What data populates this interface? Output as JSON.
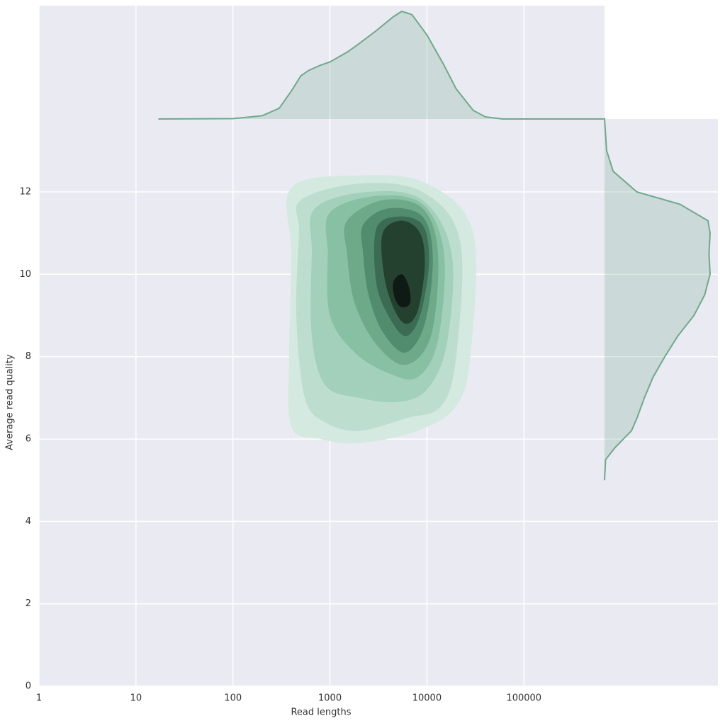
{
  "chart_data": {
    "type": "jointkde",
    "xlabel": "Read lengths",
    "ylabel": "Average read quality",
    "xscale": "log",
    "xlim": [
      1,
      10000000
    ],
    "ylim": [
      0,
      13.77
    ],
    "xticks": [
      1,
      10,
      100,
      1000,
      10000,
      100000
    ],
    "yticks": [
      0,
      2,
      4,
      6,
      8,
      10,
      12
    ],
    "grid": true,
    "background": "#eaeaf2",
    "contours": [
      {
        "color": "#d4e9df",
        "x": [
          400,
          2000,
          10000,
          30000,
          28000,
          20000,
          8000,
          2000,
          800,
          400,
          380,
          400
        ],
        "y": [
          12.1,
          12.4,
          12.2,
          11,
          8,
          6.8,
          6.2,
          5.9,
          6,
          6.3,
          8,
          10.5
        ]
      },
      {
        "color": "#bddecf",
        "x": [
          500,
          2000,
          9000,
          22000,
          20000,
          14000,
          6000,
          2000,
          900,
          550,
          450,
          480
        ],
        "y": [
          11.8,
          12.2,
          12,
          10.8,
          8,
          6.8,
          6.5,
          6.2,
          6.4,
          7,
          9,
          11
        ]
      },
      {
        "color": "#a2d0ba",
        "x": [
          700,
          2500,
          9000,
          18000,
          16000,
          10000,
          5000,
          2000,
          900,
          650,
          650
        ],
        "y": [
          11.6,
          12,
          11.8,
          10.5,
          8.3,
          7.2,
          6.9,
          7,
          7.3,
          8.5,
          10.5
        ]
      },
      {
        "color": "#88c0a3",
        "x": [
          1000,
          3000,
          9000,
          15000,
          13000,
          8000,
          4000,
          1800,
          1000,
          950
        ],
        "y": [
          11.5,
          11.9,
          11.7,
          10.5,
          8.4,
          7.5,
          7.6,
          8.1,
          9,
          10.5
        ]
      },
      {
        "color": "#6ea98a",
        "x": [
          1500,
          3500,
          9000,
          13000,
          11000,
          6000,
          3000,
          1800,
          1500
        ],
        "y": [
          11.3,
          11.8,
          11.6,
          10.5,
          8.5,
          7.8,
          8.3,
          9.3,
          10.5
        ]
      },
      {
        "color": "#528c6e",
        "x": [
          2200,
          4000,
          9000,
          11500,
          9500,
          6000,
          3500,
          2500,
          2200
        ],
        "y": [
          11.2,
          11.6,
          11.4,
          10.4,
          8.8,
          8.1,
          8.6,
          9.5,
          10.5
        ]
      },
      {
        "color": "#3b6b53",
        "x": [
          3000,
          5000,
          9000,
          10500,
          8500,
          6000,
          4000,
          3000
        ],
        "y": [
          11.1,
          11.4,
          11.2,
          10.3,
          9,
          8.5,
          9,
          9.8
        ]
      },
      {
        "color": "#24402f",
        "x": [
          3500,
          5500,
          8500,
          9500,
          8000,
          6000,
          4500,
          3600
        ],
        "y": [
          11,
          11.3,
          11,
          10.2,
          9.1,
          8.8,
          9.2,
          10
        ]
      },
      {
        "color": "#0e1a14",
        "x": [
          4500,
          5500,
          6500,
          6700,
          5500,
          4700
        ],
        "y": [
          9.8,
          10,
          9.7,
          9.3,
          9.2,
          9.4
        ]
      }
    ],
    "marginal_color": "#6fa98a",
    "marginal_x": {
      "x": [
        17,
        100,
        200,
        300,
        400,
        500,
        600,
        800,
        1000,
        1500,
        2000,
        3000,
        4500,
        5500,
        7000,
        10000,
        15000,
        20000,
        30000,
        40000,
        60000,
        690000
      ],
      "density": [
        0,
        0.003,
        0.03,
        0.1,
        0.26,
        0.4,
        0.45,
        0.5,
        0.53,
        0.62,
        0.7,
        0.82,
        0.95,
        1.0,
        0.97,
        0.78,
        0.5,
        0.28,
        0.08,
        0.02,
        0,
        0
      ]
    },
    "marginal_y": {
      "y": [
        5,
        5.5,
        5.8,
        6.2,
        6.5,
        7,
        7.5,
        8,
        8.5,
        9,
        9.5,
        10,
        10.5,
        11,
        11.3,
        11.7,
        12,
        12.5,
        13,
        13.77
      ],
      "density": [
        0,
        0.01,
        0.1,
        0.25,
        0.3,
        0.37,
        0.45,
        0.56,
        0.68,
        0.83,
        0.93,
        0.98,
        0.97,
        0.98,
        0.96,
        0.7,
        0.3,
        0.08,
        0.02,
        0
      ]
    }
  }
}
